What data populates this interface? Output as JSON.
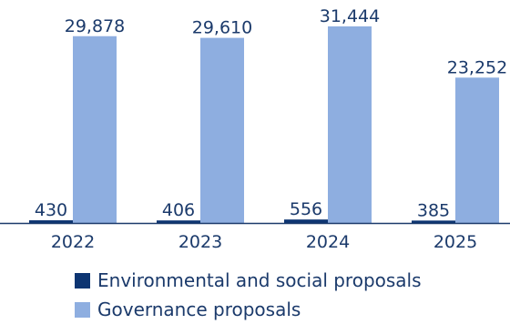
{
  "chart_data": {
    "type": "bar",
    "categories": [
      "2022",
      "2023",
      "2024",
      "2025"
    ],
    "series": [
      {
        "name": "Environmental and social proposals",
        "values": [
          430,
          406,
          556,
          385
        ],
        "labels": [
          "430",
          "406",
          "556",
          "385"
        ],
        "color": "#0d3572"
      },
      {
        "name": "Governance proposals",
        "values": [
          29878,
          29610,
          31444,
          23252
        ],
        "labels": [
          "29,878",
          "29,610",
          "31,444",
          "23,252"
        ],
        "color": "#8eaee0"
      }
    ],
    "ylim": [
      0,
      31444
    ],
    "grid": false,
    "legend_position": "bottom",
    "axis_color": "#1b3a6b",
    "text_color": "#1b3a6b"
  }
}
